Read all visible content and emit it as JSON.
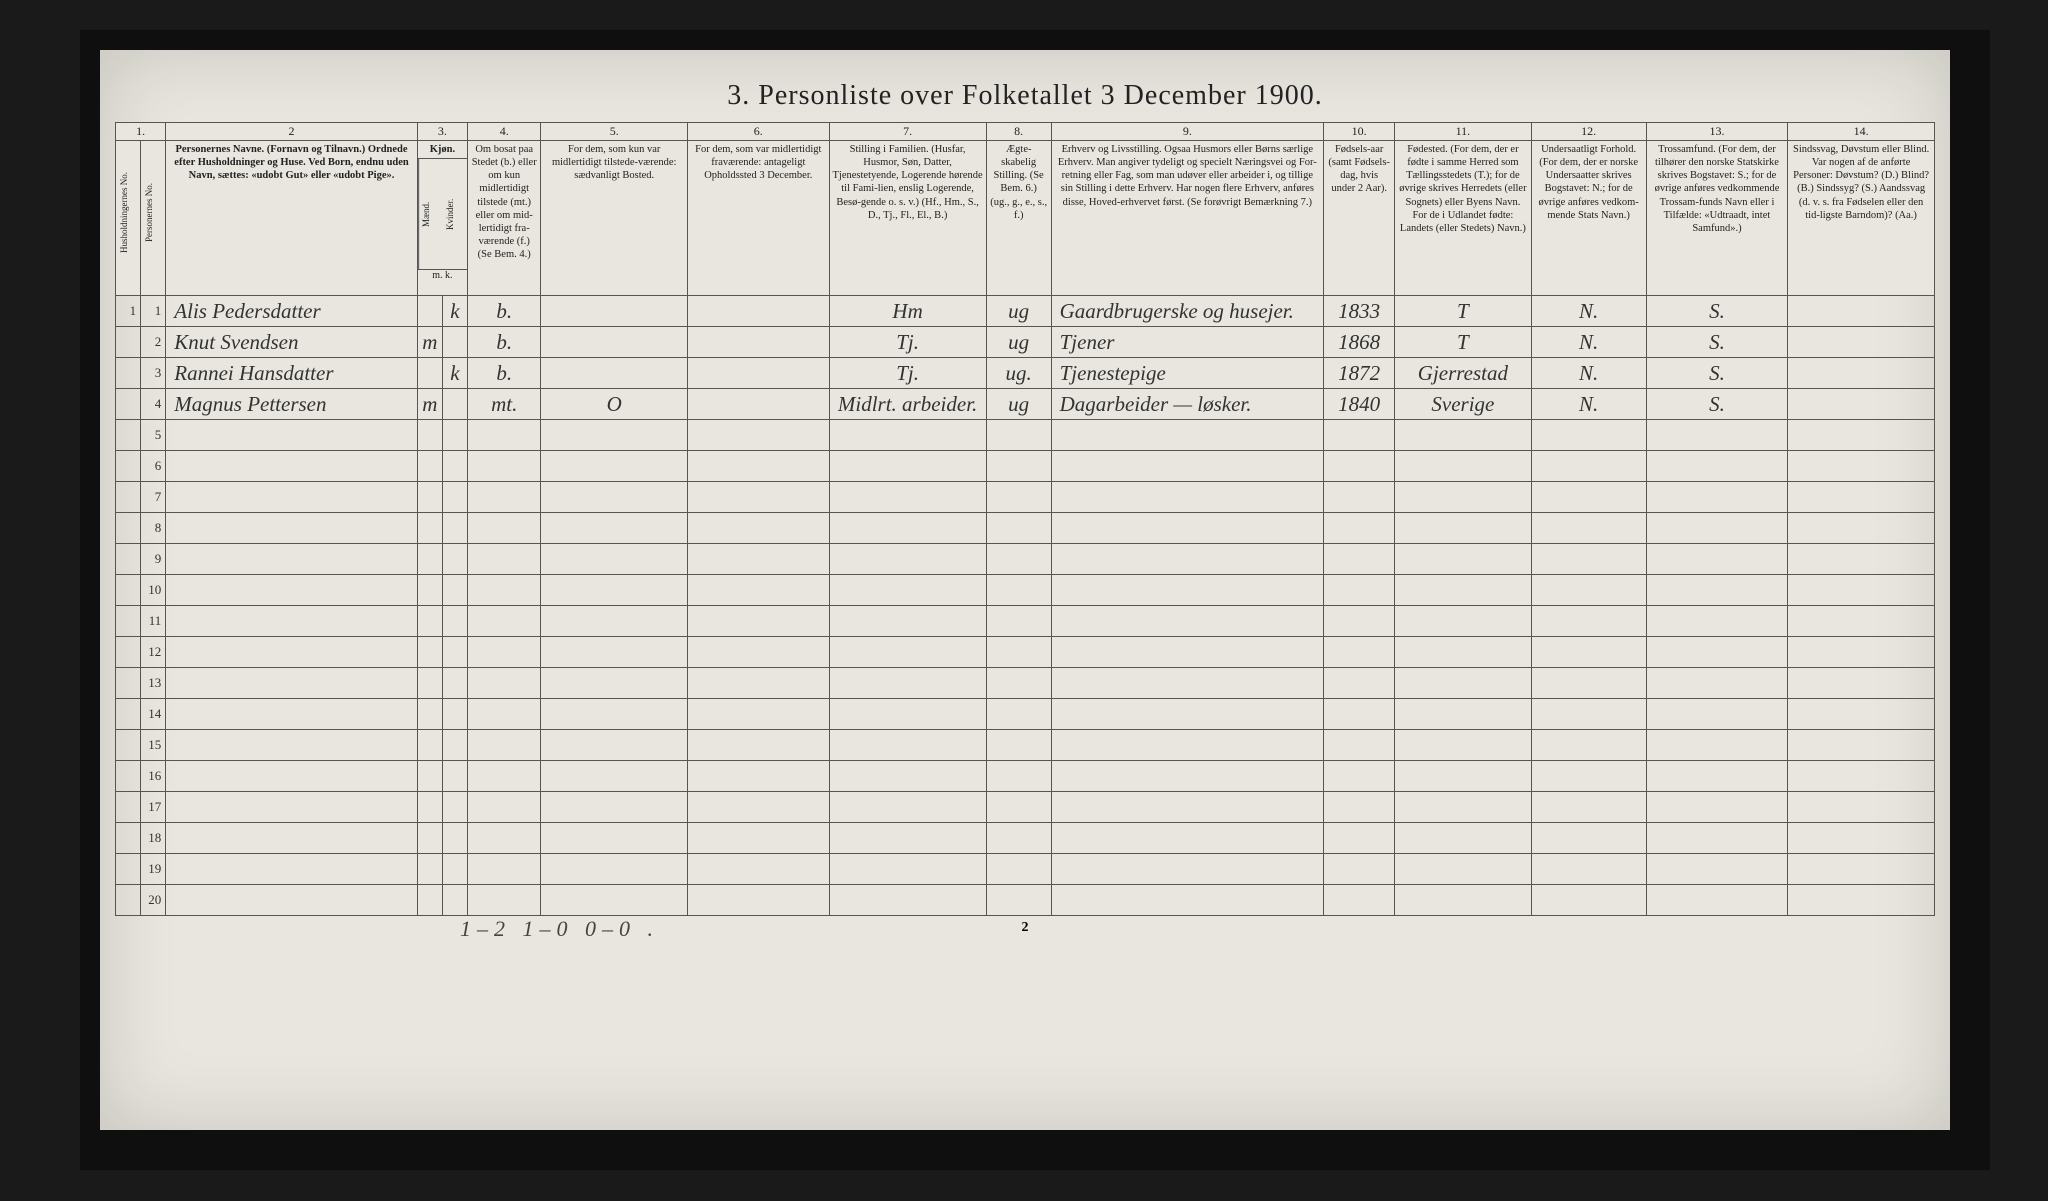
{
  "title": "3. Personliste over Folketallet 3 December 1900.",
  "colnums": [
    "1.",
    "2",
    "3.",
    "4.",
    "5.",
    "6.",
    "7.",
    "8.",
    "9.",
    "10.",
    "11.",
    "12.",
    "13.",
    "14."
  ],
  "headers": {
    "h1a": "Husholdningernes No.",
    "h1b": "Personernes No.",
    "h2": "Personernes Navne.\n(Fornavn og Tilnavn.)\nOrdnede efter Husholdninger og Huse.\nVed Born, endnu uden Navn, sættes: «udobt Gut»\neller «udobt Pige».",
    "h3": "Kjøn.",
    "h3a": "Mænd.",
    "h3b": "Kvinder.",
    "h3foot": "m.  k.",
    "h4": "Om bosat paa Stedet (b.) eller om kun midlertidigt tilstede (mt.) eller om mid-lertidigt fra-værende (f.) (Se Bem. 4.)",
    "h5": "For dem, som kun var midlertidigt tilstede-værende:\nsædvanligt Bosted.",
    "h6": "For dem, som var midlertidigt fraværende:\nantageligt Opholdssted 3 December.",
    "h7": "Stilling i Familien.\n(Husfar, Husmor, Søn, Datter, Tjenestetyende, Logerende hørende til Fami-lien, enslig Logerende, Besø-gende o. s. v.)\n(Hf., Hm., S., D., Tj., Fl., El., B.)",
    "h8": "Ægte-skabelig Stilling. (Se Bem. 6.) (ug., g., e., s., f.)",
    "h9": "Erhverv og Livsstilling.\nOgsaa Husmors eller Børns særlige Erhverv. Man angiver tydeligt og specielt Næringsvei og For-retning eller Fag, som man udøver eller arbeider i, og tillige sin Stilling i dette Erhverv. Har nogen flere Erhverv, anføres disse, Hoved-erhvervet først.\n(Se forøvrigt Bemærkning 7.)",
    "h10": "Fødsels-aar\n(samt Fødsels-dag, hvis under 2 Aar).",
    "h11": "Fødested.\n(For dem, der er fødte i samme Herred som Tællingsstedets (T.); for de øvrige skrives Herredets (eller Sognets) eller Byens Navn. For de i Udlandet fødte: Landets (eller Stedets) Navn.)",
    "h12": "Undersaatligt Forhold.\n(For dem, der er norske Undersaatter skrives Bogstavet: N.; for de øvrige anføres vedkom-mende Stats Navn.)",
    "h13": "Trossamfund.\n(For dem, der tilhører den norske Statskirke skrives Bogstavet: S.; for de øvrige anføres vedkommende Trossam-funds Navn eller i Tilfælde: «Udtraadt, intet Samfund».)",
    "h14": "Sindssvag, Døvstum eller Blind.\nVar nogen af de anførte Personer:\nDøvstum? (D.)\nBlind? (B.)\nSindssyg? (S.)\nAandssvag (d. v. s. fra Fødselen eller den tid-ligste Barndom)? (Aa.)"
  },
  "rows": [
    {
      "hn": "1",
      "pn": "1",
      "name": "Alis Pedersdatter",
      "m": "",
      "k": "k",
      "res": "b.",
      "c5": "",
      "c6": "",
      "c7": "Hm",
      "c8": "ug",
      "c9": "Gaardbrugerske og husejer.",
      "c10": "1833",
      "c11": "T",
      "c12": "N.",
      "c13": "S.",
      "c14": ""
    },
    {
      "hn": "",
      "pn": "2",
      "name": "Knut Svendsen",
      "m": "m",
      "k": "",
      "res": "b.",
      "c5": "",
      "c6": "",
      "c7": "Tj.",
      "c8": "ug",
      "c9": "Tjener",
      "c10": "1868",
      "c11": "T",
      "c12": "N.",
      "c13": "S.",
      "c14": ""
    },
    {
      "hn": "",
      "pn": "3",
      "name": "Rannei Hansdatter",
      "m": "",
      "k": "k",
      "res": "b.",
      "c5": "",
      "c6": "",
      "c7": "Tj.",
      "c8": "ug.",
      "c9": "Tjenestepige",
      "c10": "1872",
      "c11": "Gjerrestad",
      "c12": "N.",
      "c13": "S.",
      "c14": ""
    },
    {
      "hn": "",
      "pn": "4",
      "name": "Magnus Pettersen",
      "m": "m",
      "k": "",
      "res": "mt.",
      "c5": "O",
      "c6": "",
      "c7": "Midlrt. arbeider.",
      "c8": "ug",
      "c9": "Dagarbeider — løsker.",
      "c10": "1840",
      "c11": "Sverige",
      "c12": "N.",
      "c13": "S.",
      "c14": ""
    },
    {
      "hn": "",
      "pn": "5",
      "name": "",
      "m": "",
      "k": "",
      "res": "",
      "c5": "",
      "c6": "",
      "c7": "",
      "c8": "",
      "c9": "",
      "c10": "",
      "c11": "",
      "c12": "",
      "c13": "",
      "c14": ""
    },
    {
      "hn": "",
      "pn": "6",
      "name": "",
      "m": "",
      "k": "",
      "res": "",
      "c5": "",
      "c6": "",
      "c7": "",
      "c8": "",
      "c9": "",
      "c10": "",
      "c11": "",
      "c12": "",
      "c13": "",
      "c14": ""
    },
    {
      "hn": "",
      "pn": "7",
      "name": "",
      "m": "",
      "k": "",
      "res": "",
      "c5": "",
      "c6": "",
      "c7": "",
      "c8": "",
      "c9": "",
      "c10": "",
      "c11": "",
      "c12": "",
      "c13": "",
      "c14": ""
    },
    {
      "hn": "",
      "pn": "8",
      "name": "",
      "m": "",
      "k": "",
      "res": "",
      "c5": "",
      "c6": "",
      "c7": "",
      "c8": "",
      "c9": "",
      "c10": "",
      "c11": "",
      "c12": "",
      "c13": "",
      "c14": ""
    },
    {
      "hn": "",
      "pn": "9",
      "name": "",
      "m": "",
      "k": "",
      "res": "",
      "c5": "",
      "c6": "",
      "c7": "",
      "c8": "",
      "c9": "",
      "c10": "",
      "c11": "",
      "c12": "",
      "c13": "",
      "c14": ""
    },
    {
      "hn": "",
      "pn": "10",
      "name": "",
      "m": "",
      "k": "",
      "res": "",
      "c5": "",
      "c6": "",
      "c7": "",
      "c8": "",
      "c9": "",
      "c10": "",
      "c11": "",
      "c12": "",
      "c13": "",
      "c14": ""
    },
    {
      "hn": "",
      "pn": "11",
      "name": "",
      "m": "",
      "k": "",
      "res": "",
      "c5": "",
      "c6": "",
      "c7": "",
      "c8": "",
      "c9": "",
      "c10": "",
      "c11": "",
      "c12": "",
      "c13": "",
      "c14": ""
    },
    {
      "hn": "",
      "pn": "12",
      "name": "",
      "m": "",
      "k": "",
      "res": "",
      "c5": "",
      "c6": "",
      "c7": "",
      "c8": "",
      "c9": "",
      "c10": "",
      "c11": "",
      "c12": "",
      "c13": "",
      "c14": ""
    },
    {
      "hn": "",
      "pn": "13",
      "name": "",
      "m": "",
      "k": "",
      "res": "",
      "c5": "",
      "c6": "",
      "c7": "",
      "c8": "",
      "c9": "",
      "c10": "",
      "c11": "",
      "c12": "",
      "c13": "",
      "c14": ""
    },
    {
      "hn": "",
      "pn": "14",
      "name": "",
      "m": "",
      "k": "",
      "res": "",
      "c5": "",
      "c6": "",
      "c7": "",
      "c8": "",
      "c9": "",
      "c10": "",
      "c11": "",
      "c12": "",
      "c13": "",
      "c14": ""
    },
    {
      "hn": "",
      "pn": "15",
      "name": "",
      "m": "",
      "k": "",
      "res": "",
      "c5": "",
      "c6": "",
      "c7": "",
      "c8": "",
      "c9": "",
      "c10": "",
      "c11": "",
      "c12": "",
      "c13": "",
      "c14": ""
    },
    {
      "hn": "",
      "pn": "16",
      "name": "",
      "m": "",
      "k": "",
      "res": "",
      "c5": "",
      "c6": "",
      "c7": "",
      "c8": "",
      "c9": "",
      "c10": "",
      "c11": "",
      "c12": "",
      "c13": "",
      "c14": ""
    },
    {
      "hn": "",
      "pn": "17",
      "name": "",
      "m": "",
      "k": "",
      "res": "",
      "c5": "",
      "c6": "",
      "c7": "",
      "c8": "",
      "c9": "",
      "c10": "",
      "c11": "",
      "c12": "",
      "c13": "",
      "c14": ""
    },
    {
      "hn": "",
      "pn": "18",
      "name": "",
      "m": "",
      "k": "",
      "res": "",
      "c5": "",
      "c6": "",
      "c7": "",
      "c8": "",
      "c9": "",
      "c10": "",
      "c11": "",
      "c12": "",
      "c13": "",
      "c14": ""
    },
    {
      "hn": "",
      "pn": "19",
      "name": "",
      "m": "",
      "k": "",
      "res": "",
      "c5": "",
      "c6": "",
      "c7": "",
      "c8": "",
      "c9": "",
      "c10": "",
      "c11": "",
      "c12": "",
      "c13": "",
      "c14": ""
    },
    {
      "hn": "",
      "pn": "20",
      "name": "",
      "m": "",
      "k": "",
      "res": "",
      "c5": "",
      "c6": "",
      "c7": "",
      "c8": "",
      "c9": "",
      "c10": "",
      "c11": "",
      "c12": "",
      "c13": "",
      "c14": ""
    }
  ],
  "footer": "1–2    1–0    0–0 .",
  "pagenum": "2",
  "widths": {
    "c1a": 24,
    "c1b": 24,
    "c2": 240,
    "c3a": 24,
    "c3b": 24,
    "c4": 70,
    "c5": 140,
    "c6": 135,
    "c7": 150,
    "c8": 62,
    "c9": 260,
    "c10": 68,
    "c11": 130,
    "c12": 110,
    "c13": 135,
    "c14": 140
  },
  "colors": {
    "page_bg": "#e8e6de",
    "frame_bg": "#1a1a1a",
    "rule": "#555555",
    "ink": "#222222",
    "script": "#333333"
  }
}
